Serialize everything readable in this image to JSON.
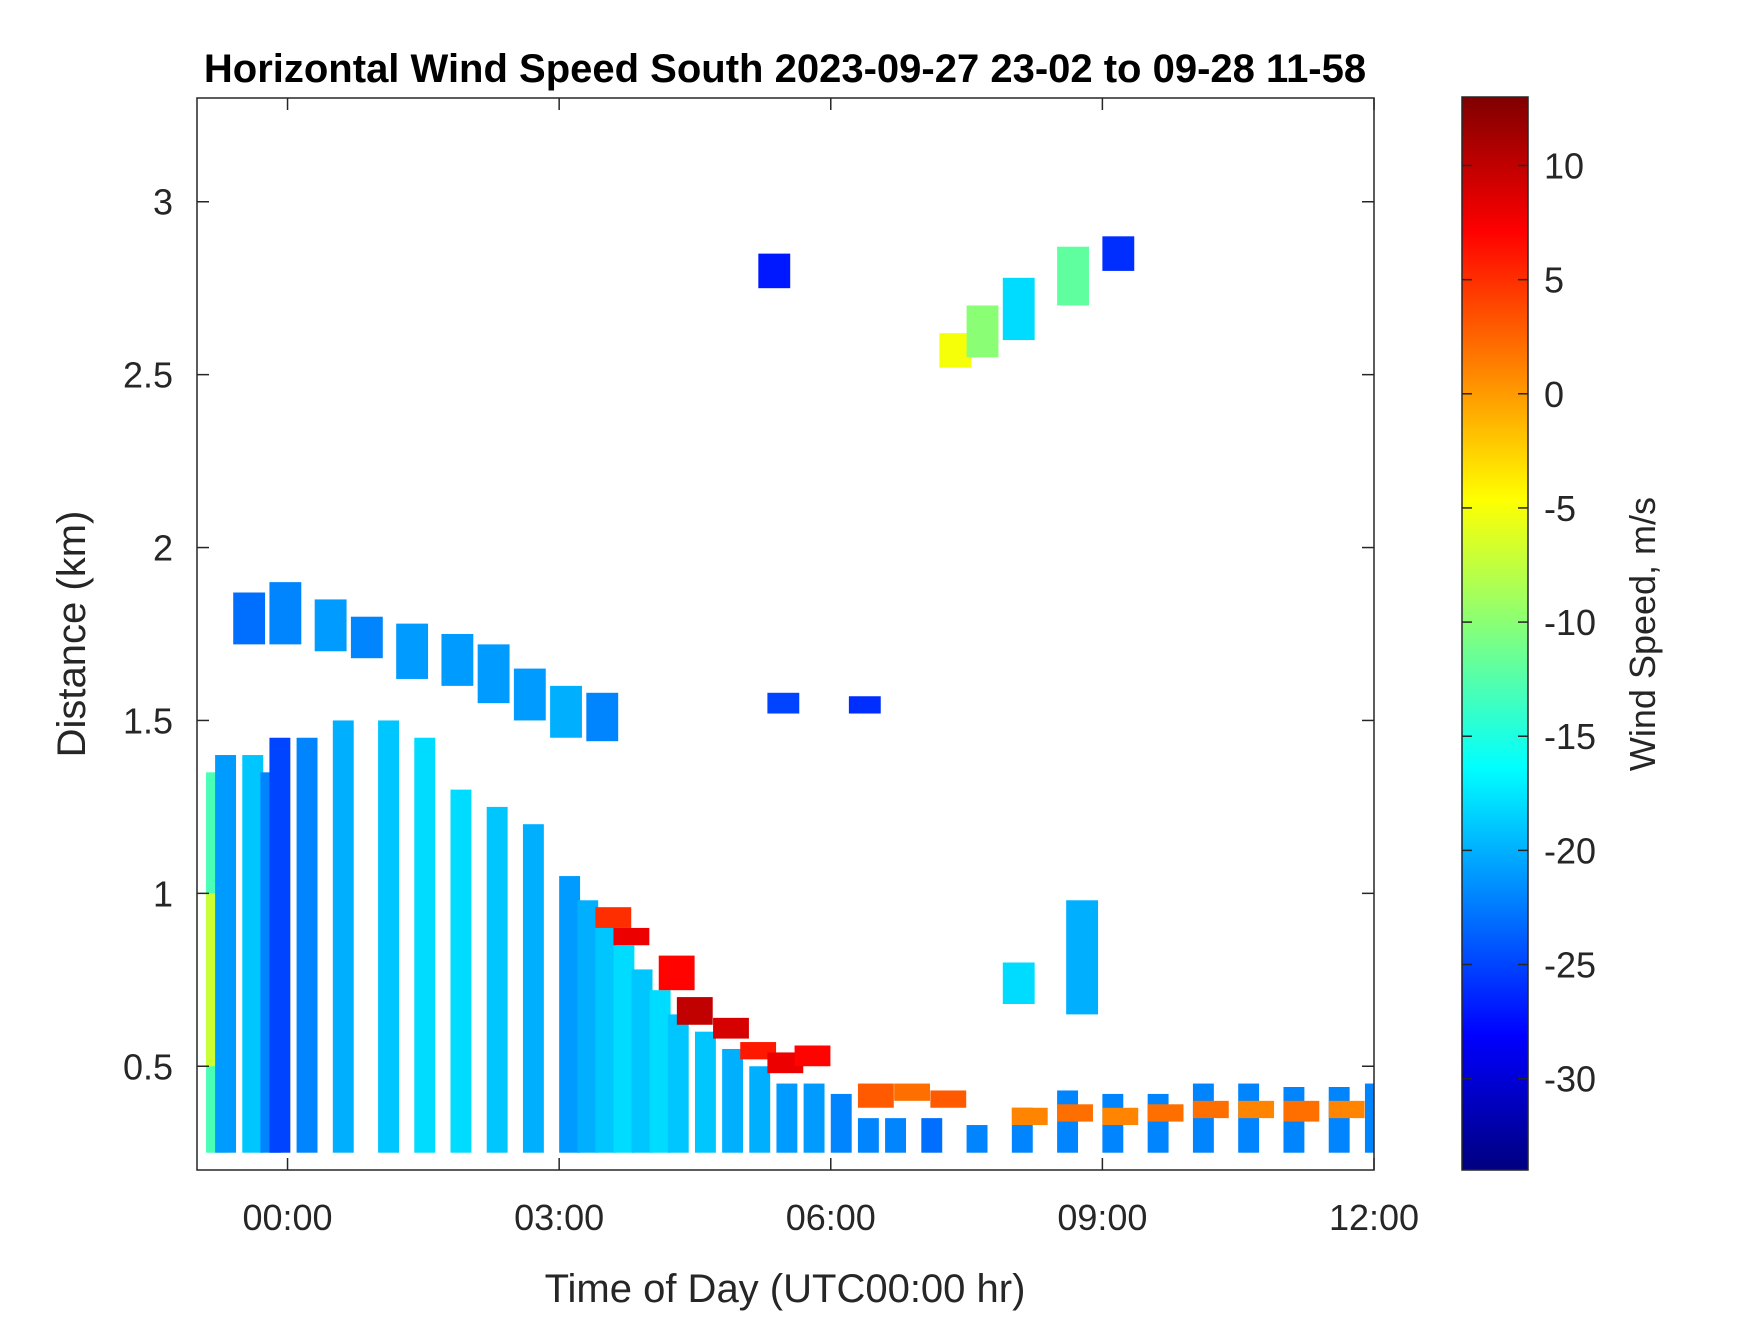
{
  "chart_data": {
    "type": "heatmap",
    "title": "Horizontal Wind Speed South 2023-09-27 23-02 to 09-28 11-58",
    "xlabel": "Time of Day (UTC00:00 hr)",
    "ylabel": "Distance (km)",
    "colorbar_label": "Wind Speed, m/s",
    "colormap": "jet",
    "xlim": [
      -1,
      12
    ],
    "ylim": [
      0.2,
      3.3
    ],
    "clim": [
      -34,
      13
    ],
    "x_ticks": [
      {
        "value": 0,
        "label": "00:00"
      },
      {
        "value": 3,
        "label": "03:00"
      },
      {
        "value": 6,
        "label": "06:00"
      },
      {
        "value": 9,
        "label": "09:00"
      },
      {
        "value": 12,
        "label": "12:00"
      }
    ],
    "y_ticks": [
      {
        "value": 0.5,
        "label": "0.5"
      },
      {
        "value": 1,
        "label": "1"
      },
      {
        "value": 1.5,
        "label": "1.5"
      },
      {
        "value": 2,
        "label": "2"
      },
      {
        "value": 2.5,
        "label": "2.5"
      },
      {
        "value": 3,
        "label": "3"
      }
    ],
    "colorbar_ticks": [
      {
        "value": 10,
        "label": "10"
      },
      {
        "value": 5,
        "label": "5"
      },
      {
        "value": 0,
        "label": "0"
      },
      {
        "value": -5,
        "label": "-5"
      },
      {
        "value": -10,
        "label": "-10"
      },
      {
        "value": -15,
        "label": "-15"
      },
      {
        "value": -20,
        "label": "-20"
      },
      {
        "value": -25,
        "label": "-25"
      },
      {
        "value": -30,
        "label": "-30"
      }
    ],
    "grid": false,
    "cells": [
      [
        -0.9,
        0.25,
        1.35,
        -13
      ],
      [
        -0.9,
        0.5,
        1.0,
        -7
      ],
      [
        -0.8,
        0.25,
        1.4,
        -21
      ],
      [
        -0.5,
        0.25,
        1.4,
        -19
      ],
      [
        -0.3,
        0.25,
        1.35,
        -22
      ],
      [
        -0.2,
        0.25,
        1.45,
        -25
      ],
      [
        0.1,
        0.25,
        1.45,
        -22
      ],
      [
        0.5,
        0.25,
        1.5,
        -20
      ],
      [
        1.0,
        0.25,
        1.5,
        -19
      ],
      [
        1.4,
        0.25,
        1.45,
        -18
      ],
      [
        1.8,
        0.25,
        1.3,
        -18
      ],
      [
        2.2,
        0.25,
        1.25,
        -19
      ],
      [
        2.6,
        0.25,
        1.2,
        -20
      ],
      [
        3.0,
        0.25,
        1.05,
        -21
      ],
      [
        3.2,
        0.25,
        0.98,
        -20
      ],
      [
        3.4,
        0.25,
        0.92,
        -19
      ],
      [
        3.6,
        0.25,
        0.85,
        -18
      ],
      [
        3.8,
        0.25,
        0.78,
        -19
      ],
      [
        4.0,
        0.25,
        0.72,
        -18
      ],
      [
        4.2,
        0.25,
        0.65,
        -19
      ],
      [
        4.5,
        0.25,
        0.6,
        -19
      ],
      [
        4.8,
        0.25,
        0.55,
        -20
      ],
      [
        5.1,
        0.25,
        0.5,
        -20
      ],
      [
        5.4,
        0.25,
        0.45,
        -21
      ],
      [
        5.7,
        0.25,
        0.45,
        -21
      ],
      [
        6.0,
        0.25,
        0.42,
        -22
      ],
      [
        6.3,
        0.25,
        0.35,
        -22
      ],
      [
        6.6,
        0.25,
        0.35,
        -22
      ],
      [
        7.0,
        0.25,
        0.35,
        -23
      ],
      [
        7.5,
        0.25,
        0.33,
        -22
      ],
      [
        8.0,
        0.25,
        0.38,
        -22
      ],
      [
        8.5,
        0.25,
        0.43,
        -22
      ],
      [
        9.0,
        0.25,
        0.42,
        -22
      ],
      [
        9.5,
        0.25,
        0.42,
        -22
      ],
      [
        10.0,
        0.25,
        0.45,
        -22
      ],
      [
        10.5,
        0.25,
        0.45,
        -22
      ],
      [
        11.0,
        0.25,
        0.44,
        -22
      ],
      [
        11.5,
        0.25,
        0.44,
        -22
      ],
      [
        11.9,
        0.25,
        0.45,
        -22
      ]
    ],
    "bands": [
      [
        3.4,
        0.9,
        0.96,
        5
      ],
      [
        3.6,
        0.85,
        0.9,
        8
      ],
      [
        4.1,
        0.72,
        0.82,
        7
      ],
      [
        4.3,
        0.62,
        0.7,
        10
      ],
      [
        4.7,
        0.58,
        0.64,
        9
      ],
      [
        5.0,
        0.52,
        0.57,
        6
      ],
      [
        5.3,
        0.48,
        0.54,
        8
      ],
      [
        5.6,
        0.5,
        0.56,
        7
      ],
      [
        6.3,
        0.38,
        0.45,
        3
      ],
      [
        6.7,
        0.4,
        0.45,
        2
      ],
      [
        7.1,
        0.38,
        0.43,
        3
      ],
      [
        8.0,
        0.33,
        0.38,
        1
      ],
      [
        8.5,
        0.34,
        0.39,
        2
      ],
      [
        9.0,
        0.33,
        0.38,
        1
      ],
      [
        9.5,
        0.34,
        0.39,
        2
      ],
      [
        10.0,
        0.35,
        0.4,
        2
      ],
      [
        10.5,
        0.35,
        0.4,
        1
      ],
      [
        11.0,
        0.34,
        0.4,
        2
      ],
      [
        11.5,
        0.35,
        0.4,
        1
      ]
    ],
    "patches": [
      [
        -0.6,
        1.72,
        1.87,
        -23
      ],
      [
        -0.2,
        1.72,
        1.9,
        -22
      ],
      [
        0.3,
        1.7,
        1.85,
        -21
      ],
      [
        0.7,
        1.68,
        1.8,
        -22
      ],
      [
        1.2,
        1.62,
        1.78,
        -21
      ],
      [
        1.7,
        1.6,
        1.75,
        -21
      ],
      [
        2.1,
        1.55,
        1.72,
        -21
      ],
      [
        2.5,
        1.5,
        1.65,
        -21
      ],
      [
        2.9,
        1.45,
        1.6,
        -20
      ],
      [
        3.3,
        1.44,
        1.58,
        -22
      ],
      [
        5.3,
        1.52,
        1.58,
        -25
      ],
      [
        6.2,
        1.52,
        1.57,
        -26
      ],
      [
        5.2,
        2.75,
        2.85,
        -27
      ],
      [
        7.2,
        2.52,
        2.62,
        -5
      ],
      [
        7.5,
        2.55,
        2.7,
        -10
      ],
      [
        7.9,
        2.6,
        2.78,
        -18
      ],
      [
        8.5,
        2.7,
        2.87,
        -12
      ],
      [
        9.0,
        2.8,
        2.9,
        -26
      ],
      [
        8.6,
        0.65,
        0.98,
        -20
      ],
      [
        7.9,
        0.68,
        0.8,
        -18
      ]
    ]
  }
}
